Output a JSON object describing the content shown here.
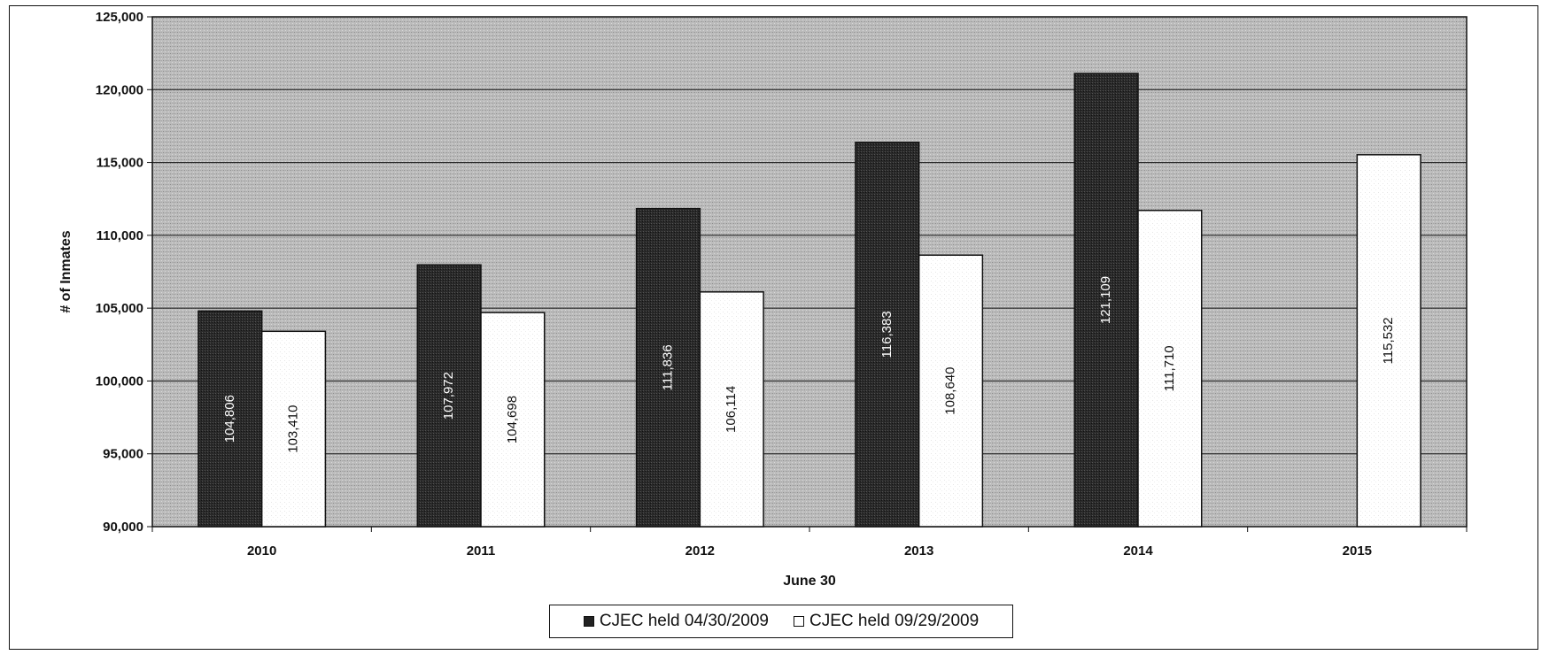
{
  "chart_data": {
    "type": "bar",
    "title": "",
    "xlabel": "June 30",
    "ylabel": "# of Inmates",
    "categories": [
      "2010",
      "2011",
      "2012",
      "2013",
      "2014",
      "2015"
    ],
    "ylim": [
      90000,
      125000
    ],
    "yticks": [
      90000,
      95000,
      100000,
      105000,
      110000,
      115000,
      120000,
      125000
    ],
    "ytick_labels": [
      "90,000",
      "95,000",
      "100,000",
      "105,000",
      "110,000",
      "115,000",
      "120,000",
      "125,000"
    ],
    "grid": true,
    "legend_position": "bottom-center",
    "series": [
      {
        "name": "CJEC held 04/30/2009",
        "color": "#222222",
        "values": [
          104806,
          107972,
          111836,
          116383,
          121109,
          null
        ],
        "labels": [
          "104,806",
          "107,972",
          "111,836",
          "116,383",
          "121,109",
          ""
        ]
      },
      {
        "name": "CJEC held 09/29/2009",
        "color": "#ffffff",
        "values": [
          103410,
          104698,
          106114,
          108640,
          111710,
          115532
        ],
        "labels": [
          "103,410",
          "104,698",
          "106,114",
          "108,640",
          "111,710",
          "115,532"
        ]
      }
    ]
  }
}
